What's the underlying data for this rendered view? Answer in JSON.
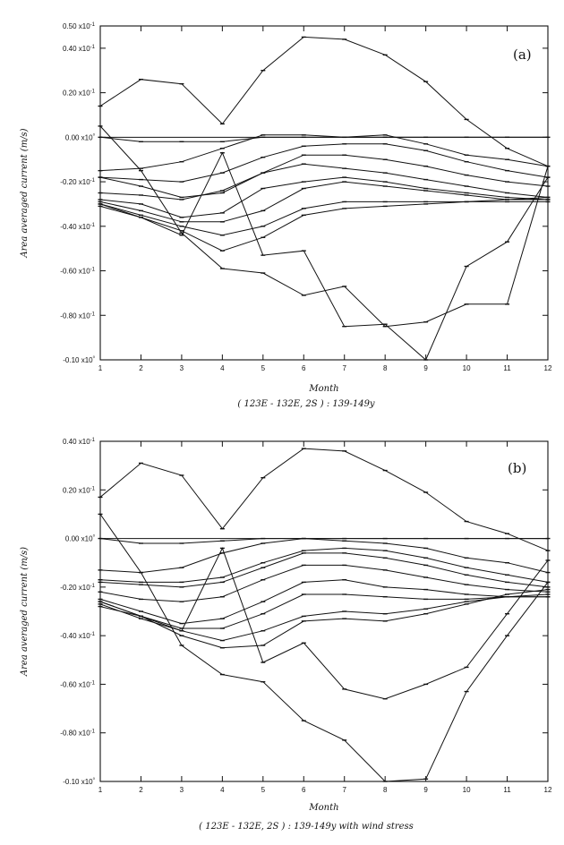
{
  "chart_data": [
    {
      "type": "line",
      "panel_label": "(a)",
      "xlabel": "Month",
      "ylabel": "Area averaged current (m/s)",
      "caption": "( 123E - 132E, 2S ) : 139-149y",
      "x": [
        1,
        2,
        3,
        4,
        5,
        6,
        7,
        8,
        9,
        10,
        11,
        12
      ],
      "xticks": [
        "1",
        "2",
        "3",
        "4",
        "5",
        "6",
        "7",
        "8",
        "9",
        "10",
        "11",
        "12"
      ],
      "ylim": [
        -1.0,
        0.5
      ],
      "yticks": [
        {
          "v": 0.5,
          "label": "0.50 x10-1"
        },
        {
          "v": 0.4,
          "label": "0.40 x10-1"
        },
        {
          "v": 0.2,
          "label": "0.20 x10-1"
        },
        {
          "v": 0.0,
          "label": "0.00 x10⁰"
        },
        {
          "v": -0.2,
          "label": "-0.20 x10-1"
        },
        {
          "v": -0.4,
          "label": "-0.40 x10-1"
        },
        {
          "v": -0.6,
          "label": "-0.60 x10-1"
        },
        {
          "v": -0.8,
          "label": "-0.80 x10-1"
        },
        {
          "v": -1.0,
          "label": "-0.10 x10⁰"
        }
      ],
      "series": [
        {
          "values": [
            0.14,
            0.26,
            0.24,
            0.06,
            0.3,
            0.45,
            0.44,
            0.37,
            0.25,
            0.08,
            -0.05,
            -0.13
          ]
        },
        {
          "values": [
            0.05,
            -0.15,
            -0.43,
            -0.59,
            -0.61,
            -0.71,
            -0.67,
            -0.85,
            -0.83,
            -0.75,
            -0.75,
            -0.13
          ]
        },
        {
          "values": [
            -0.3,
            -0.36,
            -0.44,
            -0.07,
            -0.53,
            -0.51,
            -0.85,
            -0.84,
            -1.0,
            -0.58,
            -0.47,
            -0.18
          ]
        },
        {
          "values": [
            0.0,
            -0.02,
            -0.02,
            -0.02,
            0.0,
            0.0,
            0.0,
            0.0,
            0.0,
            0.0,
            0.0,
            0.0
          ]
        },
        {
          "values": [
            -0.15,
            -0.14,
            -0.11,
            -0.05,
            0.01,
            0.01,
            0.0,
            0.01,
            -0.03,
            -0.08,
            -0.1,
            -0.13
          ]
        },
        {
          "values": [
            -0.18,
            -0.19,
            -0.2,
            -0.16,
            -0.09,
            -0.04,
            -0.03,
            -0.03,
            -0.06,
            -0.11,
            -0.15,
            -0.18
          ]
        },
        {
          "values": [
            -0.18,
            -0.22,
            -0.27,
            -0.25,
            -0.16,
            -0.08,
            -0.08,
            -0.1,
            -0.13,
            -0.17,
            -0.2,
            -0.22
          ]
        },
        {
          "values": [
            -0.25,
            -0.26,
            -0.28,
            -0.24,
            -0.16,
            -0.12,
            -0.14,
            -0.16,
            -0.19,
            -0.22,
            -0.25,
            -0.27
          ]
        },
        {
          "values": [
            -0.28,
            -0.3,
            -0.36,
            -0.34,
            -0.23,
            -0.2,
            -0.18,
            -0.2,
            -0.23,
            -0.25,
            -0.27,
            -0.28
          ]
        },
        {
          "values": [
            -0.29,
            -0.33,
            -0.38,
            -0.38,
            -0.33,
            -0.23,
            -0.2,
            -0.22,
            -0.24,
            -0.26,
            -0.28,
            -0.28
          ]
        },
        {
          "values": [
            -0.3,
            -0.35,
            -0.4,
            -0.44,
            -0.4,
            -0.32,
            -0.29,
            -0.29,
            -0.29,
            -0.29,
            -0.29,
            -0.29
          ]
        },
        {
          "values": [
            -0.31,
            -0.36,
            -0.42,
            -0.51,
            -0.45,
            -0.35,
            -0.32,
            -0.31,
            -0.3,
            -0.29,
            -0.28,
            -0.27
          ]
        }
      ]
    },
    {
      "type": "line",
      "panel_label": "(b)",
      "xlabel": "Month",
      "ylabel": "Area averaged current (m/s)",
      "caption": "( 123E - 132E, 2S ) : 139-149y with wind stress",
      "x": [
        1,
        2,
        3,
        4,
        5,
        6,
        7,
        8,
        9,
        10,
        11,
        12
      ],
      "xticks": [
        "1",
        "2",
        "3",
        "4",
        "5",
        "6",
        "7",
        "8",
        "9",
        "10",
        "11",
        "12"
      ],
      "ylim": [
        -1.0,
        0.4
      ],
      "yticks": [
        {
          "v": 0.4,
          "label": "0.40 x10-1"
        },
        {
          "v": 0.2,
          "label": "0.20 x10-1"
        },
        {
          "v": 0.0,
          "label": "0.00 x10⁰"
        },
        {
          "v": -0.2,
          "label": "-0.20 x10-1"
        },
        {
          "v": -0.4,
          "label": "-0.40 x10-1"
        },
        {
          "v": -0.6,
          "label": "-0.60 x10-1"
        },
        {
          "v": -0.8,
          "label": "-0.80 x10-1"
        },
        {
          "v": -1.0,
          "label": "-0.10 x10⁰"
        }
      ],
      "series": [
        {
          "values": [
            0.17,
            0.31,
            0.26,
            0.04,
            0.25,
            0.37,
            0.36,
            0.28,
            0.19,
            0.07,
            0.02,
            -0.05
          ]
        },
        {
          "values": [
            0.1,
            -0.14,
            -0.44,
            -0.56,
            -0.59,
            -0.75,
            -0.83,
            -1.0,
            -0.99,
            -0.63,
            -0.4,
            -0.18
          ]
        },
        {
          "values": [
            -0.26,
            -0.32,
            -0.38,
            -0.04,
            -0.51,
            -0.43,
            -0.62,
            -0.66,
            -0.6,
            -0.53,
            -0.31,
            -0.09
          ]
        },
        {
          "values": [
            0.0,
            -0.02,
            -0.02,
            -0.01,
            0.0,
            0.0,
            0.0,
            0.0,
            0.0,
            0.0,
            0.0,
            0.0
          ]
        },
        {
          "values": [
            -0.13,
            -0.14,
            -0.12,
            -0.06,
            -0.02,
            0.0,
            -0.01,
            -0.02,
            -0.04,
            -0.08,
            -0.1,
            -0.14
          ]
        },
        {
          "values": [
            -0.17,
            -0.18,
            -0.18,
            -0.16,
            -0.1,
            -0.05,
            -0.04,
            -0.05,
            -0.08,
            -0.12,
            -0.15,
            -0.18
          ]
        },
        {
          "values": [
            -0.18,
            -0.19,
            -0.2,
            -0.18,
            -0.12,
            -0.06,
            -0.06,
            -0.08,
            -0.11,
            -0.15,
            -0.18,
            -0.2
          ]
        },
        {
          "values": [
            -0.22,
            -0.25,
            -0.26,
            -0.24,
            -0.17,
            -0.11,
            -0.11,
            -0.13,
            -0.16,
            -0.19,
            -0.21,
            -0.22
          ]
        },
        {
          "values": [
            -0.25,
            -0.3,
            -0.35,
            -0.33,
            -0.26,
            -0.18,
            -0.17,
            -0.2,
            -0.21,
            -0.23,
            -0.24,
            -0.24
          ]
        },
        {
          "values": [
            -0.26,
            -0.32,
            -0.37,
            -0.37,
            -0.31,
            -0.23,
            -0.23,
            -0.24,
            -0.25,
            -0.25,
            -0.24,
            -0.24
          ]
        },
        {
          "values": [
            -0.27,
            -0.33,
            -0.38,
            -0.42,
            -0.38,
            -0.32,
            -0.3,
            -0.31,
            -0.29,
            -0.26,
            -0.24,
            -0.23
          ]
        },
        {
          "values": [
            -0.28,
            -0.32,
            -0.4,
            -0.45,
            -0.44,
            -0.34,
            -0.33,
            -0.34,
            -0.31,
            -0.27,
            -0.23,
            -0.21
          ]
        }
      ]
    }
  ]
}
